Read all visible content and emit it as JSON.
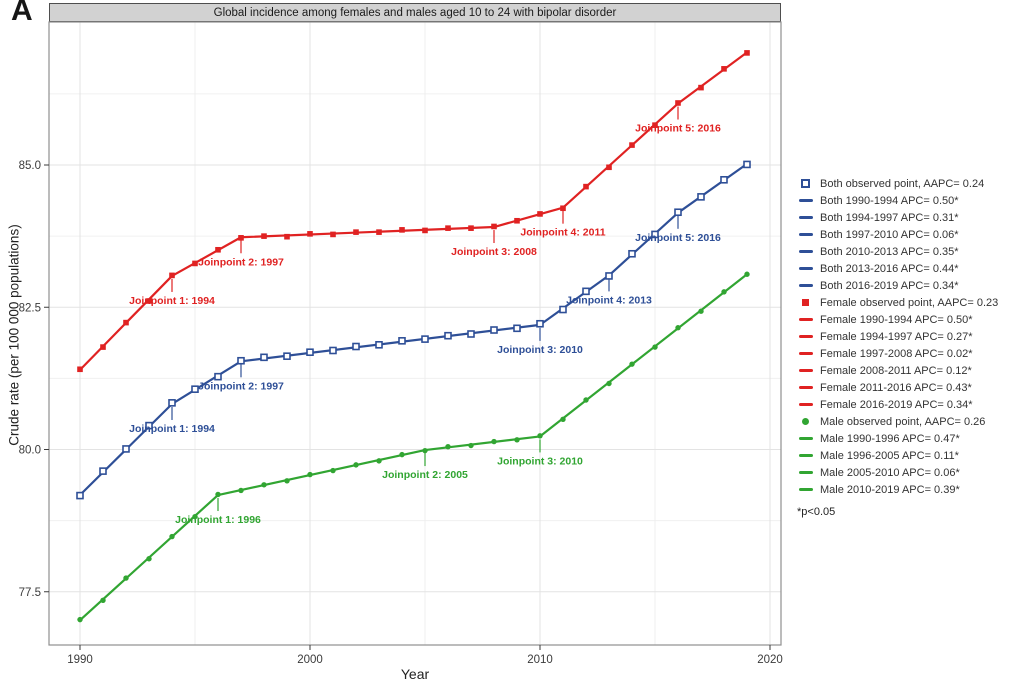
{
  "panel_label": "A",
  "chart_data": {
    "type": "line",
    "title": "Global incidence among females and males aged 10 to 24 with bipolar disorder",
    "xlabel": "Year",
    "ylabel": "Crude rate (per 100 000 populations)",
    "xlim": [
      1988.6,
      2020.5
    ],
    "ylim": [
      76.5,
      87.5
    ],
    "grid": "on",
    "legend_position": "right",
    "x_ticks": [
      "1990",
      "2000",
      "2010",
      "2020"
    ],
    "x_tick_years": [
      1990,
      2000,
      2010,
      2020
    ],
    "x_minor": [
      1995,
      2005,
      2015
    ],
    "y_ticks": [
      "77.5",
      "80.0",
      "82.5",
      "85.0"
    ],
    "y_tick_values": [
      77.5,
      80.0,
      82.5,
      85.0
    ],
    "y_minor": [
      78.75,
      81.25,
      83.75,
      86.25
    ],
    "colors": {
      "Both": "#2e4f97",
      "Female": "#e02222",
      "Male": "#31a532"
    },
    "years": [
      1990,
      1991,
      1992,
      1993,
      1994,
      1995,
      1996,
      1997,
      1998,
      1999,
      2000,
      2001,
      2002,
      2003,
      2004,
      2005,
      2006,
      2007,
      2008,
      2009,
      2010,
      2011,
      2012,
      2013,
      2014,
      2015,
      2016,
      2017,
      2018,
      2019
    ],
    "series": [
      {
        "name": "Both",
        "marker": "open-square",
        "observed": [
          79.19,
          79.62,
          80.01,
          80.42,
          80.82,
          81.06,
          81.28,
          81.56,
          81.62,
          81.64,
          81.71,
          81.74,
          81.81,
          81.84,
          81.91,
          81.94,
          82.0,
          82.03,
          82.1,
          82.13,
          82.21,
          82.46,
          82.78,
          83.05,
          83.44,
          83.78,
          84.17,
          84.44,
          84.74,
          85.01
        ],
        "fit": [
          [
            1990,
            79.2
          ],
          [
            1994,
            80.8
          ],
          [
            1997,
            81.55
          ],
          [
            2010,
            82.19
          ],
          [
            2013,
            83.06
          ],
          [
            2016,
            84.16
          ],
          [
            2019,
            85.02
          ]
        ],
        "annotations": [
          {
            "label": "Joinpoint 1: 1994",
            "year": 1994,
            "value": 80.8
          },
          {
            "label": "Joinpoint 2: 1997",
            "year": 1997,
            "value": 81.55
          },
          {
            "label": "Joinpoint 3: 2010",
            "year": 2010,
            "value": 82.19
          },
          {
            "label": "Joinpoint 4: 2013",
            "year": 2013,
            "value": 83.06
          },
          {
            "label": "Joinpoint 5: 2016",
            "year": 2016,
            "value": 84.16
          }
        ]
      },
      {
        "name": "Female",
        "marker": "square",
        "observed": [
          81.41,
          81.8,
          82.23,
          82.61,
          83.06,
          83.27,
          83.51,
          83.72,
          83.75,
          83.74,
          83.79,
          83.78,
          83.82,
          83.82,
          83.86,
          83.85,
          83.89,
          83.89,
          83.92,
          84.02,
          84.14,
          84.24,
          84.62,
          84.96,
          85.35,
          85.7,
          86.09,
          86.36,
          86.69,
          86.97
        ],
        "fit": [
          [
            1990,
            81.4
          ],
          [
            1994,
            83.05
          ],
          [
            1997,
            83.73
          ],
          [
            2008,
            83.91
          ],
          [
            2011,
            84.25
          ],
          [
            2016,
            86.08
          ],
          [
            2019,
            86.98
          ]
        ],
        "annotations": [
          {
            "label": "Joinpoint 1: 1994",
            "year": 1994,
            "value": 83.05
          },
          {
            "label": "Joinpoint 2: 1997",
            "year": 1997,
            "value": 83.73
          },
          {
            "label": "Joinpoint 3: 2008",
            "year": 2008,
            "value": 83.91
          },
          {
            "label": "Joinpoint 4: 2011",
            "year": 2011,
            "value": 84.25
          },
          {
            "label": "Joinpoint 5: 2016",
            "year": 2016,
            "value": 86.08
          }
        ]
      },
      {
        "name": "Male",
        "marker": "dot",
        "observed": [
          77.01,
          77.35,
          77.74,
          78.08,
          78.47,
          78.82,
          79.21,
          79.28,
          79.38,
          79.45,
          79.56,
          79.63,
          79.73,
          79.8,
          79.91,
          79.98,
          80.05,
          80.07,
          80.14,
          80.17,
          80.24,
          80.53,
          80.87,
          81.16,
          81.5,
          81.8,
          82.14,
          82.43,
          82.77,
          83.08
        ],
        "fit": [
          [
            1990,
            77.0
          ],
          [
            1996,
            79.2
          ],
          [
            2005,
            79.99
          ],
          [
            2010,
            80.23
          ],
          [
            2019,
            83.08
          ]
        ],
        "annotations": [
          {
            "label": "Joinpoint 1: 1996",
            "year": 1996,
            "value": 79.2
          },
          {
            "label": "Joinpoint 2: 2005",
            "year": 2005,
            "value": 79.99
          },
          {
            "label": "Joinpoint 3: 2010",
            "year": 2010,
            "value": 80.23
          }
        ]
      }
    ],
    "legend": {
      "footnote": "*p<0.05",
      "items": [
        {
          "series": "Both",
          "marker": "open-square",
          "label": "Both  observed point, AAPC= 0.24"
        },
        {
          "series": "Both",
          "marker": "dash",
          "label": "Both 1990-1994 APC= 0.50*"
        },
        {
          "series": "Both",
          "marker": "dash",
          "label": "Both 1994-1997 APC= 0.31*"
        },
        {
          "series": "Both",
          "marker": "dash",
          "label": "Both 1997-2010 APC= 0.06*"
        },
        {
          "series": "Both",
          "marker": "dash",
          "label": "Both 2010-2013 APC= 0.35*"
        },
        {
          "series": "Both",
          "marker": "dash",
          "label": "Both 2013-2016 APC= 0.44*"
        },
        {
          "series": "Both",
          "marker": "dash",
          "label": "Both 2016-2019 APC= 0.34*"
        },
        {
          "series": "Female",
          "marker": "square",
          "label": "Female  observed point, AAPC= 0.23"
        },
        {
          "series": "Female",
          "marker": "dash",
          "label": "Female 1990-1994 APC= 0.50*"
        },
        {
          "series": "Female",
          "marker": "dash",
          "label": "Female 1994-1997 APC= 0.27*"
        },
        {
          "series": "Female",
          "marker": "dash",
          "label": "Female 1997-2008 APC= 0.02*"
        },
        {
          "series": "Female",
          "marker": "dash",
          "label": "Female 2008-2011 APC= 0.12*"
        },
        {
          "series": "Female",
          "marker": "dash",
          "label": "Female 2011-2016 APC= 0.43*"
        },
        {
          "series": "Female",
          "marker": "dash",
          "label": "Female 2016-2019 APC= 0.34*"
        },
        {
          "series": "Male",
          "marker": "dot",
          "label": "Male  observed point, AAPC= 0.26"
        },
        {
          "series": "Male",
          "marker": "dash",
          "label": "Male 1990-1996 APC= 0.47*"
        },
        {
          "series": "Male",
          "marker": "dash",
          "label": "Male 1996-2005 APC= 0.11*"
        },
        {
          "series": "Male",
          "marker": "dash",
          "label": "Male 2005-2010 APC= 0.06*"
        },
        {
          "series": "Male",
          "marker": "dash",
          "label": "Male 2010-2019 APC= 0.39*"
        }
      ]
    }
  }
}
